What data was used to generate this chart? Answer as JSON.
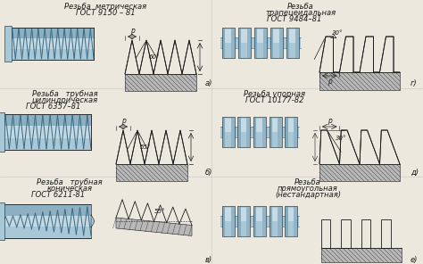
{
  "bg_color": "#ede8de",
  "line_color": "#1a1a1a",
  "thread_color_light": "#a8c8d8",
  "thread_color_mid": "#7aaec0",
  "thread_color_dark": "#3a6880",
  "hatch_color": "#888888",
  "panels": [
    {
      "title": [
        "Резьба  метрическая",
        "ГОСТ 9150 – 81"
      ],
      "label": "а)",
      "angle": "60°",
      "type": "metric",
      "col": 0,
      "row": 0
    },
    {
      "title": [
        "Резьба   трубная",
        "цилиндрическая",
        "ГОСТ 6357–81"
      ],
      "label": "б)",
      "angle": "55°",
      "type": "pipe_cyl",
      "col": 0,
      "row": 1
    },
    {
      "title": [
        "Резьба   трубная",
        "коническая",
        "ГОСТ 6211-81"
      ],
      "label": "в)",
      "angle": "55°",
      "type": "pipe_con",
      "col": 0,
      "row": 2
    },
    {
      "title": [
        "Резьба",
        "трапецеидальная",
        "ГОСТ 9484–81"
      ],
      "label": "г)",
      "angle": "30°",
      "type": "trapez",
      "col": 1,
      "row": 0
    },
    {
      "title": [
        "Резьба упорная",
        "ГОСТ 10177-82"
      ],
      "label": "д)",
      "angle": "30°",
      "type": "buttress",
      "col": 1,
      "row": 1
    },
    {
      "title": [
        "Резьба",
        "прямоугольная",
        "(нестандартная)"
      ],
      "label": "е)",
      "angle": "",
      "type": "rect",
      "col": 1,
      "row": 2
    }
  ]
}
